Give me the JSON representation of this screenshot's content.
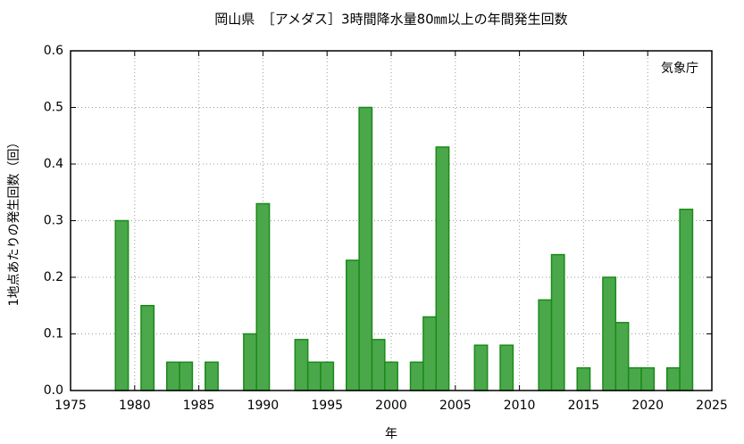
{
  "chart_data": {
    "type": "bar",
    "title": "岡山県　［アメダス］3時間降水量80㎜以上の年間発生回数",
    "xlabel": "年",
    "ylabel": "1地点あたりの発生回数（回）",
    "annotation": "気象庁",
    "x": [
      1979,
      1981,
      1983,
      1984,
      1986,
      1989,
      1990,
      1993,
      1994,
      1995,
      1997,
      1998,
      1999,
      2000,
      2002,
      2003,
      2004,
      2007,
      2009,
      2012,
      2013,
      2015,
      2017,
      2018,
      2019,
      2020,
      2022,
      2023
    ],
    "values": [
      0.3,
      0.15,
      0.05,
      0.05,
      0.05,
      0.1,
      0.33,
      0.09,
      0.05,
      0.05,
      0.23,
      0.5,
      0.09,
      0.05,
      0.05,
      0.13,
      0.43,
      0.08,
      0.08,
      0.16,
      0.24,
      0.04,
      0.2,
      0.12,
      0.04,
      0.04,
      0.04,
      0.32
    ],
    "color": "#4aa84a",
    "edge_color": "#1a8a1a",
    "xlim": [
      1975,
      2025
    ],
    "xticks": [
      1975,
      1980,
      1985,
      1990,
      1995,
      2000,
      2005,
      2010,
      2015,
      2020,
      2025
    ],
    "ylim": [
      0,
      0.6
    ],
    "yticks": [
      {
        "value": 0,
        "label": "0.0"
      },
      0.1,
      0.2,
      0.3,
      0.4,
      0.5,
      0.6
    ],
    "grid": true
  }
}
